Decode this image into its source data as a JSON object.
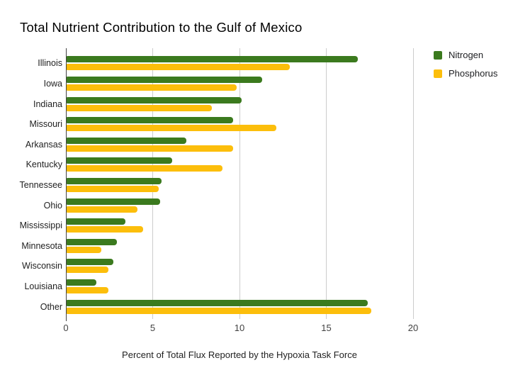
{
  "title": "Total Nutrient Contribution to the Gulf of Mexico",
  "chart_data": {
    "type": "bar",
    "orientation": "horizontal",
    "title": "Total Nutrient Contribution to the Gulf of Mexico",
    "xlabel": "Percent of Total Flux Reported by the Hypoxia Task Force",
    "ylabel": "",
    "xlim": [
      0,
      20
    ],
    "xticks": [
      0,
      5,
      10,
      15,
      20
    ],
    "grid": true,
    "legend_position": "top-right",
    "categories": [
      "Illinois",
      "Iowa",
      "Indiana",
      "Missouri",
      "Arkansas",
      "Kentucky",
      "Tennessee",
      "Ohio",
      "Mississippi",
      "Minnesota",
      "Wisconsin",
      "Louisiana",
      "Other"
    ],
    "series": [
      {
        "name": "Nitrogen",
        "color": "#3b7a1e",
        "values": [
          16.8,
          11.3,
          10.1,
          9.6,
          6.9,
          6.1,
          5.5,
          5.4,
          3.4,
          2.9,
          2.7,
          1.7,
          17.4
        ]
      },
      {
        "name": "Phosphorus",
        "color": "#fcbe0b",
        "values": [
          12.9,
          9.8,
          8.4,
          12.1,
          9.6,
          9.0,
          5.3,
          4.1,
          4.4,
          2.0,
          2.4,
          2.4,
          17.6
        ]
      }
    ]
  }
}
